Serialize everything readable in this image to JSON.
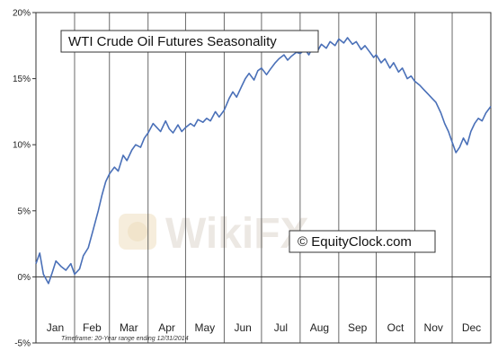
{
  "chart_data": {
    "type": "line",
    "title": "WTI Crude Oil Futures Seasonality",
    "copyright": "© EquityClock.com",
    "footnote": "Timeframe: 20-Year range ending 12/31/2014",
    "watermark": "WikiFX",
    "xlabel": "",
    "ylabel": "",
    "x_range": [
      0,
      365
    ],
    "ylim": [
      -5,
      20
    ],
    "y_ticks": [
      -5,
      0,
      5,
      10,
      15,
      20
    ],
    "y_tick_labels": [
      "-5%",
      "0%",
      "5%",
      "10%",
      "15%",
      "20%"
    ],
    "months": [
      "Jan",
      "Feb",
      "Mar",
      "Apr",
      "May",
      "Jun",
      "Jul",
      "Aug",
      "Sep",
      "Oct",
      "Nov",
      "Dec"
    ],
    "month_starts": [
      0,
      31,
      59,
      90,
      120,
      151,
      181,
      212,
      243,
      273,
      304,
      334
    ],
    "grid": "vertical at month boundaries",
    "line_color": "#4a70b8",
    "series": [
      {
        "x": [
          0,
          3,
          6,
          10,
          13,
          16,
          20,
          24,
          28,
          31,
          35,
          38,
          42,
          46,
          50,
          53,
          56,
          59,
          63,
          66,
          70,
          73,
          77,
          80,
          84,
          87,
          90,
          94,
          97,
          100,
          104,
          107,
          110,
          114,
          117,
          120,
          124,
          127,
          130,
          134,
          137,
          140,
          144,
          147,
          151,
          155,
          158,
          161,
          165,
          168,
          171,
          175,
          178,
          181,
          185,
          188,
          192,
          195,
          199,
          202,
          205,
          209,
          212,
          216,
          219,
          222,
          226,
          229,
          233,
          236,
          240,
          243,
          247,
          250,
          254,
          257,
          261,
          264,
          268,
          271,
          273,
          277,
          280,
          284,
          287,
          291,
          294,
          298,
          301,
          304,
          308,
          311,
          315,
          318,
          321,
          325,
          328,
          331,
          334,
          337,
          340,
          343,
          346,
          349,
          352,
          355,
          358,
          361,
          365
        ],
        "y": [
          1.0,
          1.8,
          0.2,
          -0.5,
          0.3,
          1.2,
          0.8,
          0.5,
          1.0,
          0.2,
          0.6,
          1.6,
          2.2,
          3.6,
          5.0,
          6.2,
          7.2,
          7.8,
          8.3,
          8.0,
          9.2,
          8.8,
          9.6,
          10.0,
          9.8,
          10.5,
          10.9,
          11.6,
          11.3,
          11.0,
          11.8,
          11.2,
          10.9,
          11.5,
          11.0,
          11.3,
          11.6,
          11.4,
          11.9,
          11.7,
          12.0,
          11.8,
          12.5,
          12.1,
          12.6,
          13.5,
          14.0,
          13.6,
          14.4,
          15.0,
          15.4,
          14.9,
          15.6,
          15.8,
          15.3,
          15.7,
          16.2,
          16.5,
          16.8,
          16.4,
          16.7,
          17.0,
          16.9,
          17.2,
          16.8,
          17.4,
          17.1,
          17.6,
          17.3,
          17.8,
          17.5,
          18.0,
          17.7,
          18.1,
          17.6,
          17.8,
          17.2,
          17.5,
          17.0,
          16.6,
          16.8,
          16.2,
          16.5,
          15.8,
          16.2,
          15.5,
          15.8,
          15.0,
          15.2,
          14.8,
          14.5,
          14.2,
          13.8,
          13.5,
          13.2,
          12.4,
          11.6,
          11.0,
          10.2,
          9.4,
          9.8,
          10.5,
          10.0,
          11.0,
          11.6,
          12.0,
          11.8,
          12.4,
          12.9
        ]
      }
    ]
  }
}
